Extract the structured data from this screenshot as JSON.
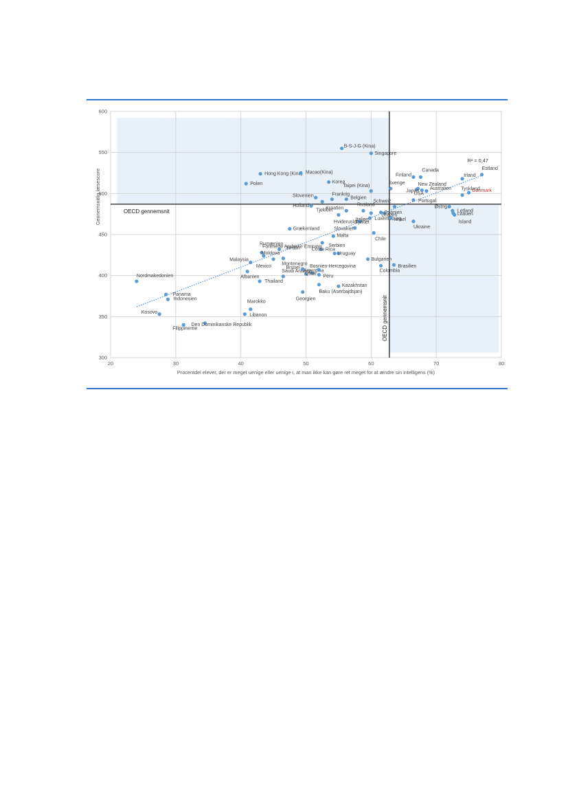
{
  "chart_data": {
    "type": "scatter",
    "xlabel": "Procentdel elever, der er meget uenige eller uenige i, at man ikke kan gøre ret meget for at ændre sin intelligens (%)",
    "ylabel": "Gennemsnitlig læsescore",
    "xlim": [
      20,
      80
    ],
    "ylim": [
      300,
      600
    ],
    "xticks": [
      20,
      30,
      40,
      50,
      60,
      70,
      80
    ],
    "yticks": [
      300,
      350,
      400,
      450,
      500,
      550,
      600
    ],
    "grid": true,
    "point_color": "#5b9bd5",
    "highlight_color": "#e03030",
    "trendline": {
      "label": "R² = 0,47",
      "from": [
        24,
        362
      ],
      "to": [
        77,
        522
      ]
    },
    "reference_lines": {
      "oecd_reading": 487,
      "oecd_pct": 62.8,
      "oecd_label": "OECD gennemsnit"
    },
    "points": [
      {
        "label": "B-S-J-G (Kina)",
        "x": 55.5,
        "y": 555
      },
      {
        "label": "Singapore",
        "x": 60,
        "y": 549
      },
      {
        "label": "Estland",
        "x": 77,
        "y": 523
      },
      {
        "label": "Canada",
        "x": 67.6,
        "y": 520
      },
      {
        "label": "Finland",
        "x": 66.5,
        "y": 520
      },
      {
        "label": "Irland",
        "x": 74,
        "y": 518
      },
      {
        "label": "Hong Kong (Kina)",
        "x": 43,
        "y": 524
      },
      {
        "label": "Macao(Kina)",
        "x": 49.2,
        "y": 525
      },
      {
        "label": "Korea",
        "x": 53.5,
        "y": 514
      },
      {
        "label": "Polen",
        "x": 40.8,
        "y": 512
      },
      {
        "label": "Sverige",
        "x": 63,
        "y": 506
      },
      {
        "label": "New Zealand",
        "x": 67.2,
        "y": 506
      },
      {
        "label": "USA",
        "x": 67,
        "y": 505
      },
      {
        "label": "Japan",
        "x": 67.8,
        "y": 504
      },
      {
        "label": "Australien",
        "x": 68.5,
        "y": 503
      },
      {
        "label": "Taipei (Kina)",
        "x": 60,
        "y": 503
      },
      {
        "label": "Danmark",
        "x": 75,
        "y": 501,
        "highlight": true
      },
      {
        "label": "Tyskland",
        "x": 74,
        "y": 498
      },
      {
        "label": "Slovenien",
        "x": 51.5,
        "y": 495
      },
      {
        "label": "Frankrig",
        "x": 54,
        "y": 493
      },
      {
        "label": "Belgien",
        "x": 56.2,
        "y": 493
      },
      {
        "label": "Portugal",
        "x": 66.5,
        "y": 492
      },
      {
        "label": "Holland",
        "x": 50.8,
        "y": 485
      },
      {
        "label": "Tjekkiet",
        "x": 52.5,
        "y": 490
      },
      {
        "label": "Rusland",
        "x": 58.8,
        "y": 479
      },
      {
        "label": "Schweiz",
        "x": 63.6,
        "y": 484
      },
      {
        "label": "Østrig",
        "x": 72,
        "y": 484
      },
      {
        "label": "Letland",
        "x": 72.5,
        "y": 479
      },
      {
        "label": "Kroatien",
        "x": 56.2,
        "y": 479
      },
      {
        "label": "Hviderusland",
        "x": 55,
        "y": 474
      },
      {
        "label": "Italien",
        "x": 60,
        "y": 476
      },
      {
        "label": "Ungarn",
        "x": 62,
        "y": 476
      },
      {
        "label": "Spanien",
        "x": 61.5,
        "y": 477
      },
      {
        "label": "Litauen",
        "x": 72.6,
        "y": 476
      },
      {
        "label": "Island",
        "x": 72.8,
        "y": 474
      },
      {
        "label": "Luxembourg",
        "x": 59.8,
        "y": 470
      },
      {
        "label": "Israel",
        "x": 63,
        "y": 470
      },
      {
        "label": "Ukraine",
        "x": 66.5,
        "y": 466
      },
      {
        "label": "Slovakiet",
        "x": 57.5,
        "y": 458
      },
      {
        "label": "Tyrkiet",
        "x": 58.2,
        "y": 466
      },
      {
        "label": "Grækenland",
        "x": 47.5,
        "y": 457
      },
      {
        "label": "Chile",
        "x": 60.4,
        "y": 452
      },
      {
        "label": "Malta",
        "x": 54.2,
        "y": 448
      },
      {
        "label": "Forenede Arabiske Emirater",
        "x": 52.3,
        "y": 432
      },
      {
        "label": "Serbien",
        "x": 52.5,
        "y": 440
      },
      {
        "label": "Rumænien",
        "x": 43.2,
        "y": 428
      },
      {
        "label": "Moldova",
        "x": 43.5,
        "y": 424
      },
      {
        "label": "Costa Rica",
        "x": 55,
        "y": 427
      },
      {
        "label": "Uruguay",
        "x": 54.4,
        "y": 427
      },
      {
        "label": "Jordan",
        "x": 45.9,
        "y": 432
      },
      {
        "label": "Malaysia",
        "x": 41.5,
        "y": 416
      },
      {
        "label": "Mexico",
        "x": 45,
        "y": 420
      },
      {
        "label": "Montenegro",
        "x": 46.5,
        "y": 421
      },
      {
        "label": "Bulgarien",
        "x": 59.5,
        "y": 420
      },
      {
        "label": "Brasilien",
        "x": 63.5,
        "y": 413
      },
      {
        "label": "Colombia",
        "x": 61.5,
        "y": 412
      },
      {
        "label": "Argentina",
        "x": 50,
        "y": 402
      },
      {
        "label": "Bosnien-Hercegovina",
        "x": 51,
        "y": 403
      },
      {
        "label": "Saudi Arabien",
        "x": 46.5,
        "y": 399
      },
      {
        "label": "Albanien",
        "x": 41,
        "y": 405
      },
      {
        "label": "Brunei",
        "x": 49.5,
        "y": 408
      },
      {
        "label": "Peru",
        "x": 52,
        "y": 401
      },
      {
        "label": "Qatar",
        "x": 52,
        "y": 407
      },
      {
        "label": "Thailand",
        "x": 42.9,
        "y": 393
      },
      {
        "label": "Kazakhstan",
        "x": 55,
        "y": 387
      },
      {
        "label": "Baku (Aserbajdsjan)",
        "x": 52,
        "y": 389
      },
      {
        "label": "Georgien",
        "x": 49.5,
        "y": 380
      },
      {
        "label": "Nordmakedonien",
        "x": 24,
        "y": 393
      },
      {
        "label": "Panama",
        "x": 28.5,
        "y": 377
      },
      {
        "label": "Indonesien",
        "x": 28.8,
        "y": 371
      },
      {
        "label": "Marokko",
        "x": 41.5,
        "y": 359
      },
      {
        "label": "Libanon",
        "x": 40.6,
        "y": 353
      },
      {
        "label": "Kosovo",
        "x": 27.5,
        "y": 353
      },
      {
        "label": "Den Dominikanske Republik",
        "x": 34.5,
        "y": 342
      },
      {
        "label": "Filippinerne",
        "x": 31.2,
        "y": 340
      }
    ]
  }
}
